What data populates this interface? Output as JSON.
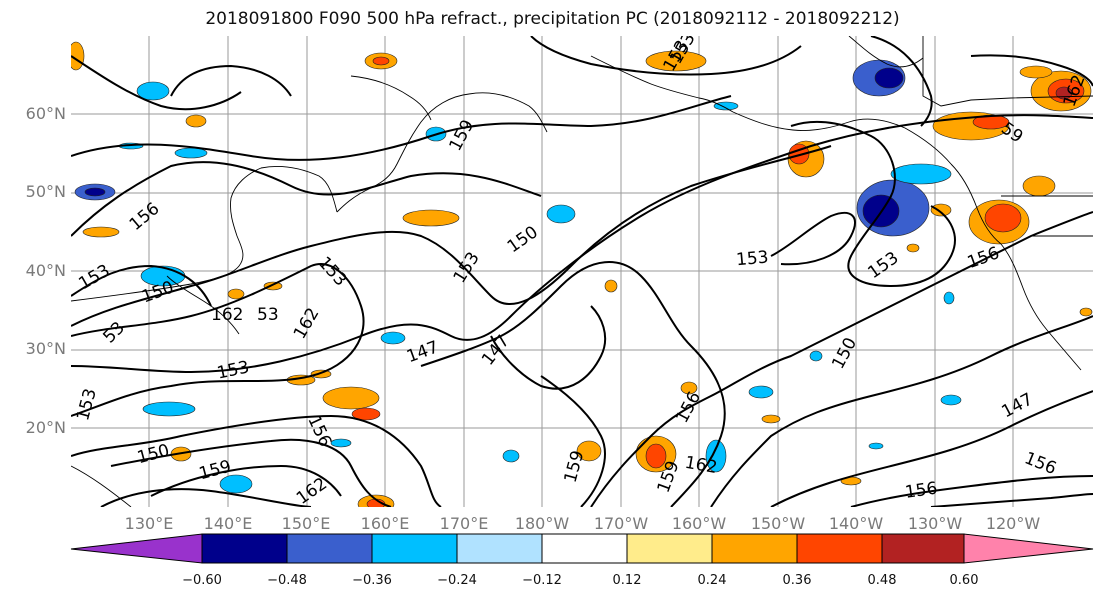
{
  "title": "2018091800 F090 500 hPa refract., precipitation PC (2018092112 - 2018092212)",
  "map": {
    "lat_labels": [
      "60°N",
      "50°N",
      "40°N",
      "30°N",
      "20°N"
    ],
    "lon_labels": [
      "130°E",
      "140°E",
      "150°E",
      "160°E",
      "170°E",
      "180°W",
      "170°W",
      "160°W",
      "150°W",
      "140°W",
      "130°W",
      "120°W"
    ],
    "contour_labels": [
      "153",
      "159",
      "156",
      "153",
      "150",
      "162",
      "162",
      "153",
      "153",
      "147",
      "147",
      "153",
      "150",
      "153",
      "150",
      "159",
      "156",
      "162",
      "159",
      "156",
      "156",
      "162",
      "159",
      "153",
      "153",
      "150",
      "147",
      "156",
      "156",
      "59",
      "162",
      "153",
      "53",
      "53"
    ],
    "colors": {
      "neg_060": "#9932cc",
      "neg_048": "#00008b",
      "neg_036": "#3a5fcd",
      "neg_024": "#00bfff",
      "neg_012": "#b0e2ff",
      "zero": "#ffffff",
      "pos_012": "#ffec8b",
      "pos_024": "#ffa500",
      "pos_036": "#ff4500",
      "pos_048": "#b22222",
      "pos_060": "#ff82ab"
    }
  },
  "colorbar": {
    "tick_labels": [
      "−0.60",
      "−0.48",
      "−0.36",
      "−0.24",
      "−0.12",
      "0.12",
      "0.24",
      "0.36",
      "0.48",
      "0.60"
    ]
  }
}
